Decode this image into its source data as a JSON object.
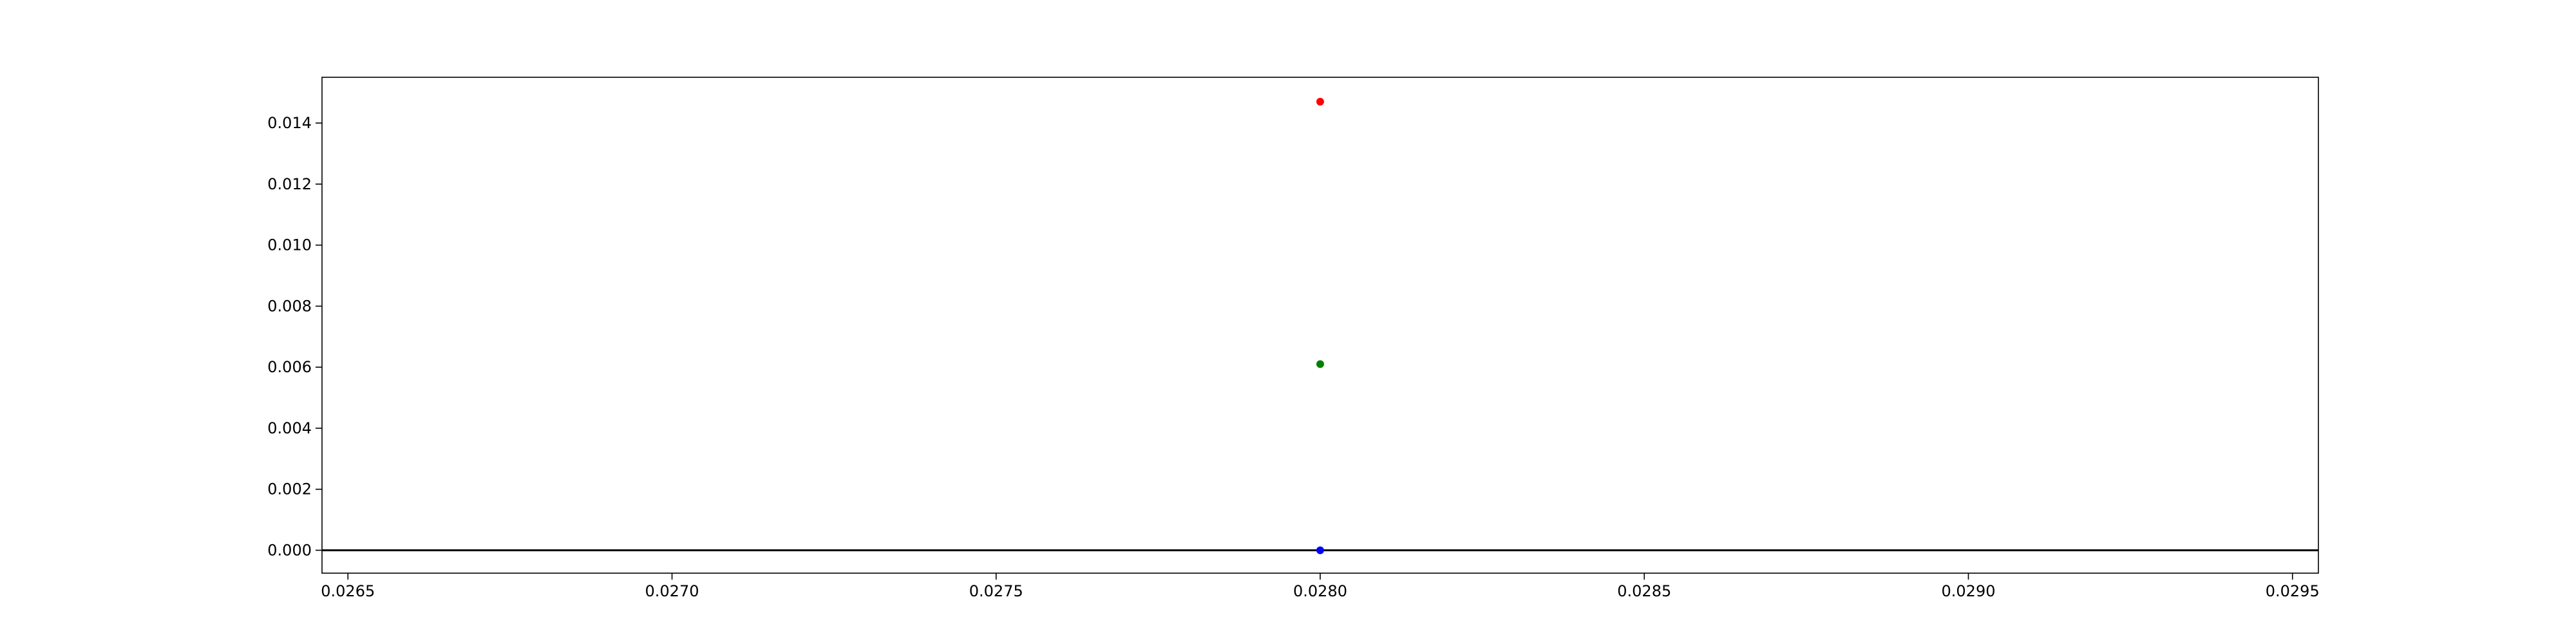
{
  "chart_data": {
    "type": "scatter",
    "title": "",
    "xlabel": "",
    "ylabel": "",
    "xlim": [
      0.02646,
      0.02954
    ],
    "ylim": [
      -0.00075,
      0.0155
    ],
    "x_ticks": [
      0.0265,
      0.027,
      0.0275,
      0.028,
      0.0285,
      0.029,
      0.0295
    ],
    "x_tick_labels": [
      "0.0265",
      "0.0270",
      "0.0275",
      "0.0280",
      "0.0285",
      "0.0290",
      "0.0295"
    ],
    "y_ticks": [
      0.0,
      0.002,
      0.004,
      0.006,
      0.008,
      0.01,
      0.012,
      0.014
    ],
    "y_tick_labels": [
      "0.000",
      "0.002",
      "0.004",
      "0.006",
      "0.008",
      "0.010",
      "0.012",
      "0.014"
    ],
    "grid": false,
    "reference_line": {
      "y": 0.0,
      "color": "#000000"
    },
    "series": [
      {
        "x": [
          0.028
        ],
        "y": [
          0.0147
        ],
        "color": "#ff0000"
      },
      {
        "x": [
          0.028
        ],
        "y": [
          0.0061
        ],
        "color": "#008000"
      },
      {
        "x": [
          0.028
        ],
        "y": [
          0.0
        ],
        "color": "#0000ff"
      }
    ]
  }
}
